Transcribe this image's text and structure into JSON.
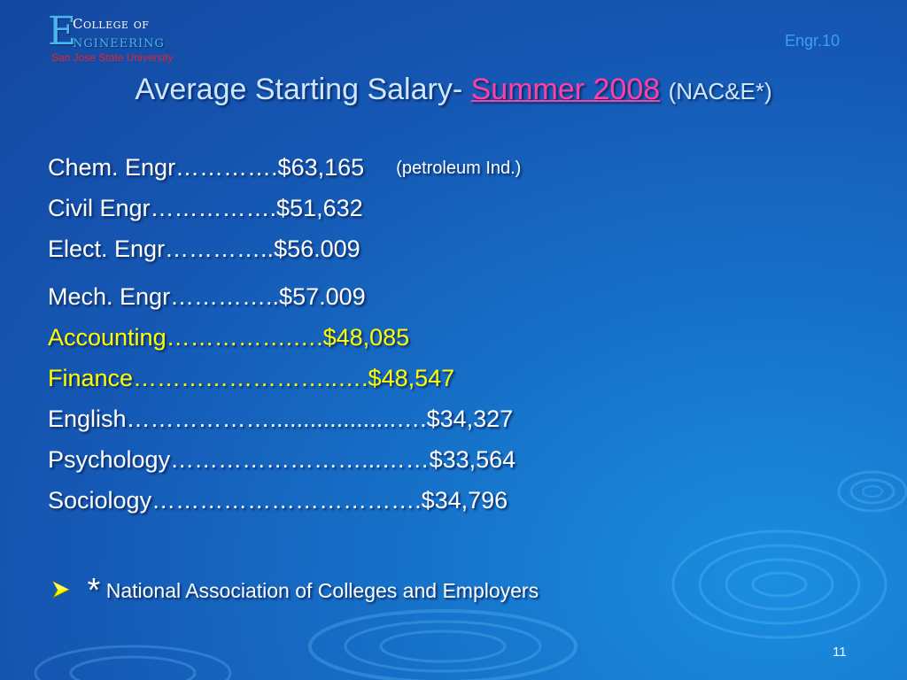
{
  "logo": {
    "letter": "E",
    "college": "College of",
    "engineering": "ngineering",
    "university": "San Jose State University"
  },
  "corner_label": "Engr.10",
  "title": {
    "prefix": "Average Starting Salary-",
    "highlight": "Summer 2008",
    "suffix": "(NAC&E*)"
  },
  "salaries": [
    {
      "text": "Chem. Engr………….$63,165",
      "note": "(petroleum Ind.)"
    },
    {
      "text": "Civil Engr…………….$51,632"
    },
    {
      "text": "Elect. Engr…………..$56.009"
    },
    {
      "text": "Mech. Engr…………..$57.009"
    },
    {
      "text": "Accounting…………….….$48,085"
    },
    {
      "text": "Finance……………………..….$48,547"
    },
    {
      "text": "English………………...................….$34,327"
    },
    {
      "text": "Psychology……………………...……$33,564"
    },
    {
      "text": "Sociology…………………………….$34,796"
    }
  ],
  "footnote": {
    "star": "*",
    "text": "National Association of Colleges and Employers"
  },
  "page_number": "11",
  "colors": {
    "background": "#1558b4",
    "title_highlight": "#ff3fa6",
    "yellow_text": "#ffff00",
    "university_text": "#e8242a",
    "bullet": "#ffff00"
  },
  "icons": {
    "bullet": "arrow-bullet-icon",
    "ripples": "water-ripple-decoration"
  }
}
